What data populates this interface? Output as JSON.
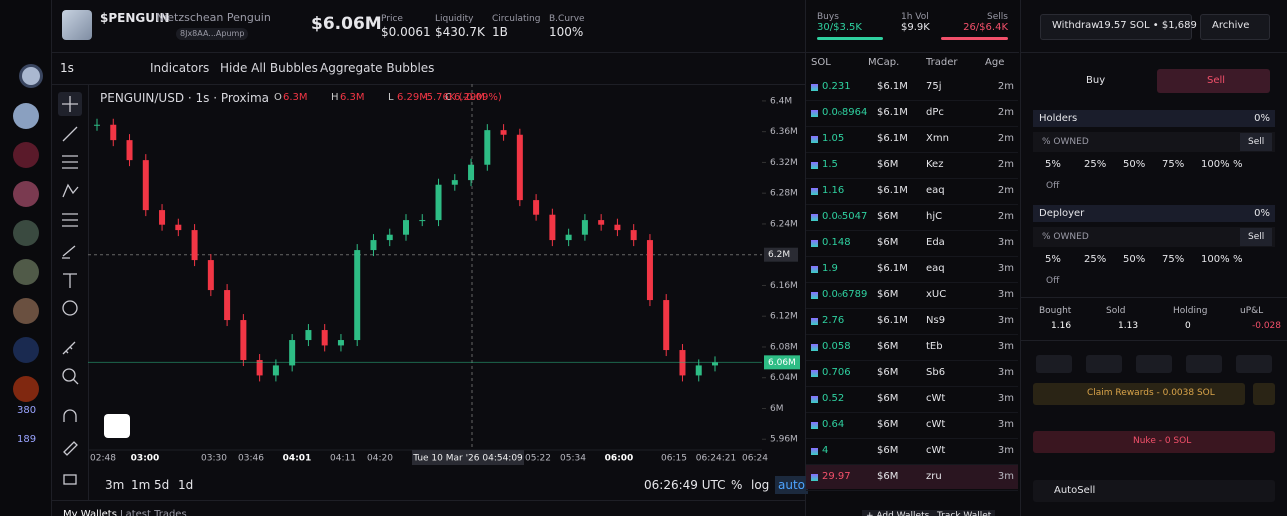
{
  "sidebar": {
    "badges": [
      "380",
      "189"
    ]
  },
  "header": {
    "symbol": "$PENGUIN",
    "name": "Nietzschean Penguin",
    "address": "8Jx8AA...Apump",
    "market_cap": "$6.06M",
    "stats": [
      {
        "label": "Price",
        "value": "$0.0061"
      },
      {
        "label": "Liquidity",
        "value": "$430.7K"
      },
      {
        "label": "Circulating",
        "value": "1B"
      },
      {
        "label": "B.Curve",
        "value": "100%"
      }
    ]
  },
  "toolbar": {
    "interval": "1s",
    "items": [
      "Indicators",
      "Hide All Bubbles",
      "Aggregate Bubbles"
    ]
  },
  "chart_data": {
    "type": "candlestick",
    "title": "PENGUIN/USD · 1s · Proxima",
    "ohlc": [
      {
        "label": "O",
        "value": "6.3M"
      },
      {
        "label": "H",
        "value": "6.3M"
      },
      {
        "label": "L",
        "value": "6.29M"
      },
      {
        "label": "C",
        "value": "6.29M"
      }
    ],
    "change": "-5.76K (-0.09%)",
    "closes": [
      6369000,
      6349000,
      6323000,
      6258000,
      6239000,
      6232000,
      6193000,
      6154000,
      6115000,
      6063000,
      6043000,
      6056000,
      6089000,
      6102000,
      6082000,
      6089000,
      6206000,
      6219000,
      6226000,
      6245000,
      6245000,
      6291000,
      6297000,
      6317000,
      6362000,
      6356000,
      6271000,
      6252000,
      6219000,
      6226000,
      6245000,
      6239000,
      6232000,
      6219000,
      6141000,
      6076000,
      6043000,
      6056000,
      6060000
    ],
    "ylim": [
      5946000,
      6422000
    ],
    "yticks": [
      {
        "value": 6400000,
        "label": "6.4M"
      },
      {
        "value": 6360000,
        "label": "6.36M"
      },
      {
        "value": 6320000,
        "label": "6.32M"
      },
      {
        "value": 6280000,
        "label": "6.28M"
      },
      {
        "value": 6240000,
        "label": "6.24M"
      },
      {
        "value": 6160000,
        "label": "6.16M"
      },
      {
        "value": 6120000,
        "label": "6.12M"
      },
      {
        "value": 6080000,
        "label": "6.08M"
      },
      {
        "value": 6040000,
        "label": "6.04M"
      },
      {
        "value": 6000000,
        "label": "6M"
      },
      {
        "value": 5960000,
        "label": "5.96M"
      }
    ],
    "xticks": [
      "02:48",
      "03:00",
      "03:30",
      "03:46",
      "04:01",
      "04:11",
      "04:20",
      "05:22",
      "05:34",
      "06:00",
      "06:15",
      "06:24:21",
      "06:24"
    ],
    "crosshair_price": {
      "value": 6200000,
      "label": "6.2M"
    },
    "crosshair_time": "Tue 10 Mar '26  04:54:09",
    "last_price": {
      "value": 6060000,
      "label": "6.06M"
    },
    "up_color": "#2ebd85",
    "down_color": "#f23645"
  },
  "chart_footer": {
    "ranges": [
      "3m",
      "1m",
      "5d",
      "1d"
    ],
    "clock": "06:26:49 UTC",
    "options": [
      "%",
      "log",
      "auto"
    ]
  },
  "bottom_tabs": [
    "My Wallets",
    "Latest Trades"
  ],
  "trades": {
    "summary": {
      "buys_label": "Buys",
      "buys": "30/$3.5K",
      "vol_label": "1h Vol",
      "vol": "$9.9K",
      "sells_label": "Sells",
      "sells": "26/$6.4K"
    },
    "columns": [
      "SOL",
      "MCap.",
      "Trader",
      "Age"
    ],
    "rows": [
      {
        "sol": "0.231",
        "mcap": "$6.1M",
        "trader": "75j",
        "age": "2m",
        "color": "#2fd1a0"
      },
      {
        "sol": "0.0₀8964",
        "mcap": "$6.1M",
        "trader": "dPc",
        "age": "2m",
        "color": "#2fd1a0"
      },
      {
        "sol": "1.05",
        "mcap": "$6.1M",
        "trader": "Xmn",
        "age": "2m",
        "color": "#2fd1a0"
      },
      {
        "sol": "1.5",
        "mcap": "$6M",
        "trader": "Kez",
        "age": "2m",
        "color": "#2fd1a0"
      },
      {
        "sol": "1.16",
        "mcap": "$6.1M",
        "trader": "eaq",
        "age": "2m",
        "color": "#2fd1a0"
      },
      {
        "sol": "0.0₀5047",
        "mcap": "$6M",
        "trader": "hjC",
        "age": "2m",
        "color": "#2fd1a0"
      },
      {
        "sol": "0.148",
        "mcap": "$6M",
        "trader": "Eda",
        "age": "3m",
        "color": "#2fd1a0"
      },
      {
        "sol": "1.9",
        "mcap": "$6.1M",
        "trader": "eaq",
        "age": "3m",
        "color": "#2fd1a0"
      },
      {
        "sol": "0.0₀6789",
        "mcap": "$6M",
        "trader": "xUC",
        "age": "3m",
        "color": "#2fd1a0"
      },
      {
        "sol": "2.76",
        "mcap": "$6.1M",
        "trader": "Ns9",
        "age": "3m",
        "color": "#2fd1a0"
      },
      {
        "sol": "0.058",
        "mcap": "$6M",
        "trader": "tEb",
        "age": "3m",
        "color": "#2fd1a0"
      },
      {
        "sol": "0.706",
        "mcap": "$6M",
        "trader": "Sb6",
        "age": "3m",
        "color": "#2fd1a0"
      },
      {
        "sol": "0.52",
        "mcap": "$6M",
        "trader": "cWt",
        "age": "3m",
        "color": "#2fd1a0"
      },
      {
        "sol": "0.64",
        "mcap": "$6M",
        "trader": "cWt",
        "age": "3m",
        "color": "#2fd1a0"
      },
      {
        "sol": "4",
        "mcap": "$6M",
        "trader": "cWt",
        "age": "3m",
        "color": "#2fd1a0"
      },
      {
        "sol": "29.97",
        "mcap": "$6M",
        "trader": "zru",
        "age": "3m",
        "color": "#f2506a"
      }
    ],
    "actions": [
      "+ Add Wallets",
      "Track Wallet"
    ]
  },
  "panel": {
    "withdraw": "Withdraw",
    "withdraw_amount": "19.57 SOL • $1,689",
    "archive": "Archive",
    "tabs": [
      "Buy",
      "Sell"
    ],
    "holders": {
      "title": "Holders",
      "share": "0%",
      "owned": "% OWNED",
      "sell": "Sell",
      "presets": [
        "5%",
        "25%",
        "50%",
        "75%",
        "100%",
        "%"
      ],
      "toggle": "Off"
    },
    "deployer": {
      "title": "Deployer",
      "share": "0%",
      "owned": "% OWNED",
      "sell": "Sell",
      "presets": [
        "5%",
        "25%",
        "50%",
        "75%",
        "100%",
        "%"
      ],
      "toggle": "Off"
    },
    "stats": [
      {
        "label": "Bought",
        "value": "1.16"
      },
      {
        "label": "Sold",
        "value": "1.13"
      },
      {
        "label": "Holding",
        "value": "0"
      },
      {
        "label": "uP&L",
        "value": "-0.028"
      }
    ],
    "claim": "Claim Rewards - 0.0038 SOL",
    "nuke": "Nuke - 0 SOL",
    "autosell": "AutoSell"
  }
}
